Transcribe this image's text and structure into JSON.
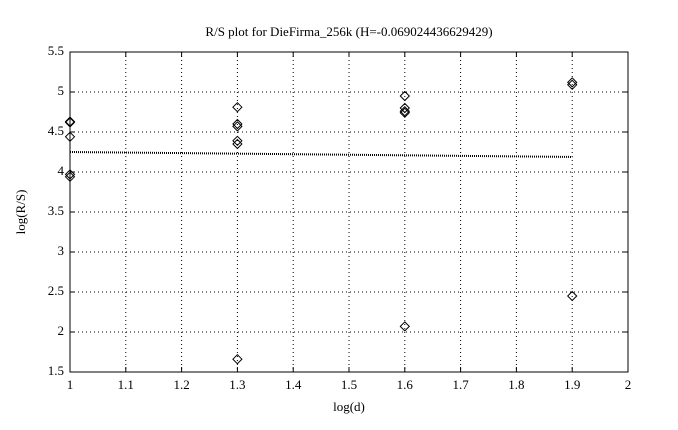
{
  "chart_data": {
    "type": "scatter",
    "title": "R/S plot for DieFirma_256k (H=-0.069024436629429)",
    "x_label": "log(d)",
    "y_label": "log(R/S)",
    "xlim": [
      1,
      2
    ],
    "xticks": [
      1,
      1.1,
      1.2,
      1.3,
      1.4,
      1.5,
      1.6,
      1.7,
      1.8,
      1.9,
      2
    ],
    "ylim": [
      1.5,
      5.5
    ],
    "yticks": [
      1.5,
      2,
      2.5,
      3,
      3.5,
      4,
      4.5,
      5,
      5.5
    ],
    "grid": true,
    "series": [
      {
        "type": "scatter",
        "color": "#000000",
        "x": [
          1,
          1,
          1,
          1,
          1,
          1.3,
          1.3,
          1.3,
          1.3,
          1.3,
          1.3,
          1.6,
          1.6,
          1.6,
          1.6,
          1.6,
          1.9,
          1.9,
          1.9
        ],
        "values": [
          4.63,
          4.62,
          4.44,
          3.97,
          3.94,
          4.81,
          4.6,
          4.57,
          4.39,
          4.35,
          1.66,
          4.95,
          4.8,
          4.76,
          4.74,
          2.07,
          5.12,
          5.09,
          2.45
        ]
      },
      {
        "type": "line",
        "color": "#000000",
        "x": [
          1,
          1.9
        ],
        "values": [
          4.25,
          4.188
        ]
      }
    ]
  }
}
